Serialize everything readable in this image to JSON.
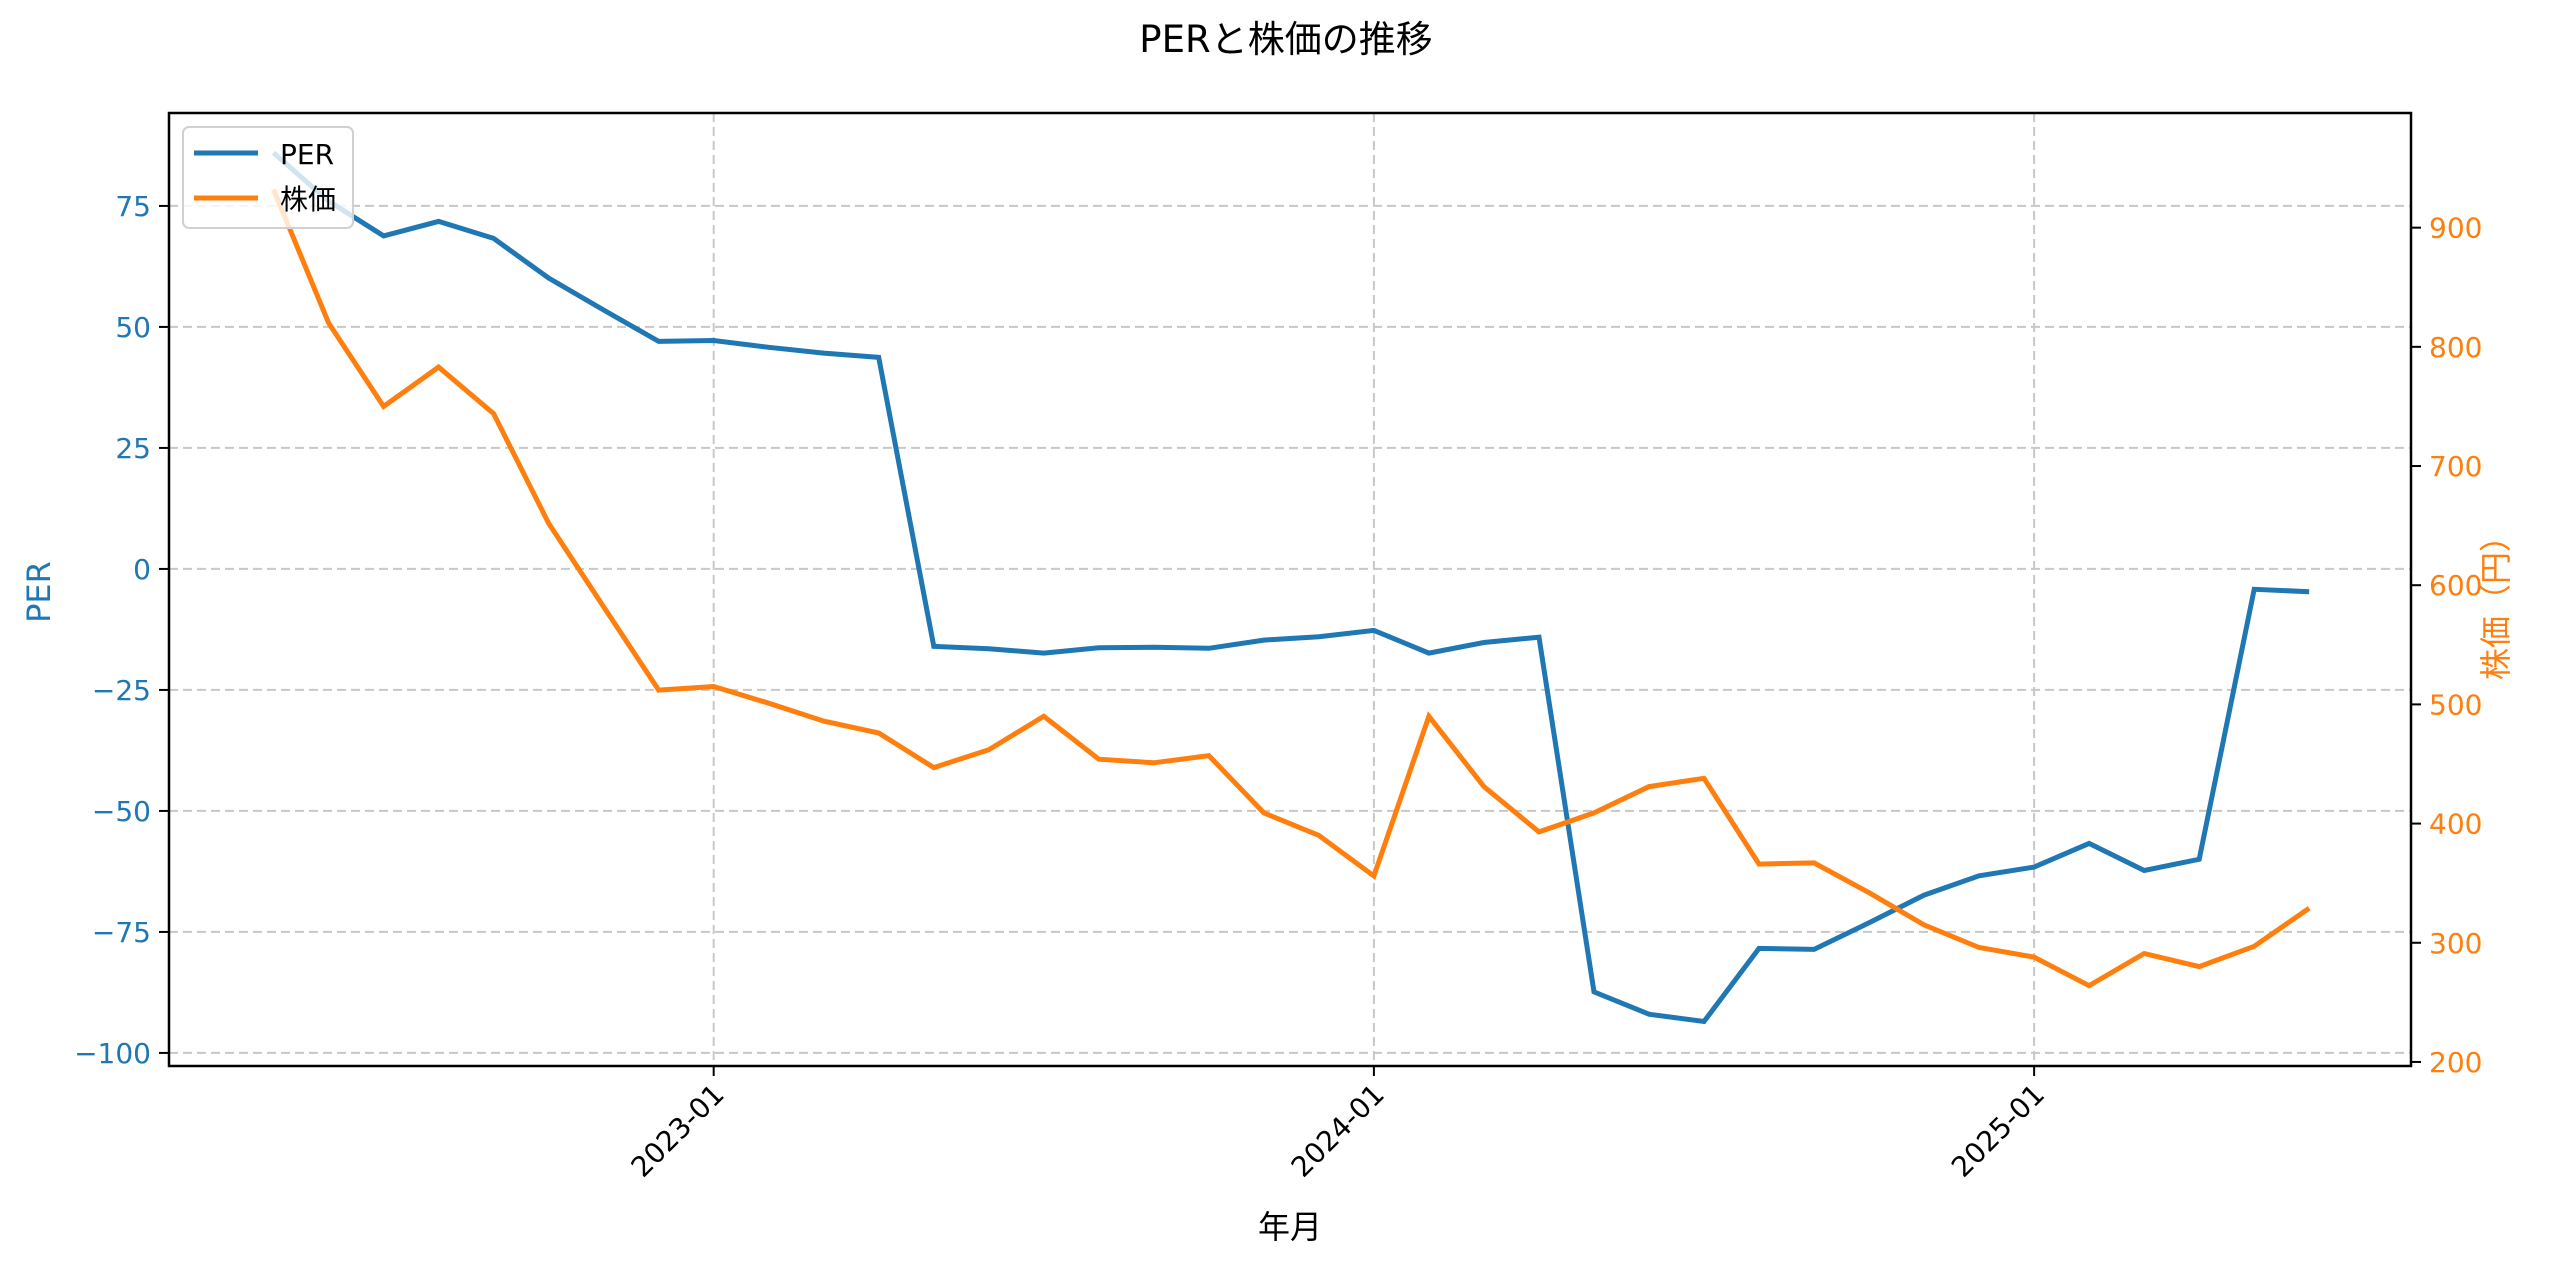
{
  "chart_data": {
    "type": "line",
    "title": "PERと株価の推移",
    "xlabel": "年月",
    "ylabel_left": "PER",
    "ylabel_right": "株価（円）",
    "x": [
      "2022-05",
      "2022-06",
      "2022-07",
      "2022-08",
      "2022-09",
      "2022-10",
      "2022-11",
      "2022-12",
      "2023-01",
      "2023-02",
      "2023-03",
      "2023-04",
      "2023-05",
      "2023-06",
      "2023-07",
      "2023-08",
      "2023-09",
      "2023-10",
      "2023-11",
      "2023-12",
      "2024-01",
      "2024-02",
      "2024-03",
      "2024-04",
      "2024-05",
      "2024-06",
      "2024-07",
      "2024-08",
      "2024-09",
      "2024-10",
      "2024-11",
      "2024-12",
      "2025-01",
      "2025-02",
      "2025-03",
      "2025-04",
      "2025-05",
      "2025-06"
    ],
    "series": [
      {
        "name": "PER",
        "axis": "left",
        "color": "#1f77b4",
        "values": [
          86.0,
          76.0,
          68.8,
          71.8,
          68.3,
          60.1,
          53.5,
          47.0,
          47.2,
          45.8,
          44.6,
          43.7,
          -16.0,
          -16.5,
          -17.4,
          -16.3,
          -16.2,
          -16.4,
          -14.7,
          -14.0,
          -12.7,
          -17.4,
          -15.2,
          -14.1,
          -87.4,
          -92.0,
          -93.5,
          -78.4,
          -78.6,
          -73.1,
          -67.4,
          -63.4,
          -61.6,
          -56.7,
          -62.3,
          -60.0,
          -4.2,
          -4.7
        ]
      },
      {
        "name": "株価",
        "axis": "right",
        "color": "#ff7f0e",
        "values": [
          932,
          820,
          750,
          783,
          744,
          652,
          582,
          512,
          515,
          501,
          486,
          476,
          447,
          462,
          490,
          454,
          451,
          457,
          409,
          390,
          356,
          490,
          431,
          393,
          409,
          431,
          438,
          366,
          367,
          342,
          315,
          296,
          288,
          264,
          291,
          280,
          297,
          329
        ]
      }
    ],
    "xticks": [
      {
        "label": "2023-01",
        "index": 8
      },
      {
        "label": "2024-01",
        "index": 20
      },
      {
        "label": "2025-01",
        "index": 32
      }
    ],
    "yticks_left": [
      75,
      50,
      25,
      0,
      -25,
      -50,
      -75,
      -100
    ],
    "yticks_left_labels": [
      "75",
      "50",
      "25",
      "0",
      "−25",
      "−50",
      "−75",
      "−100"
    ],
    "yticks_right": [
      900,
      800,
      700,
      600,
      500,
      400,
      300,
      200
    ],
    "ylim_left": [
      -102.7,
      94.2
    ],
    "ylim_right": [
      196.6,
      996.2
    ],
    "xlim_index": [
      -1.9,
      38.85
    ],
    "grid": true,
    "grid_style": "dashed",
    "legend": {
      "position": "upper left",
      "entries": [
        "PER",
        "株価"
      ]
    },
    "xtick_rotation": -45
  }
}
